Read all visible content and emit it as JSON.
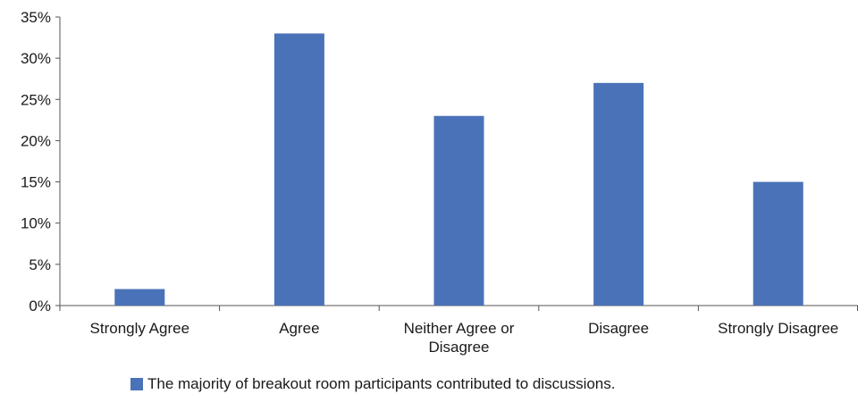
{
  "chart_data": {
    "type": "bar",
    "categories": [
      "Strongly Agree",
      "Agree",
      "Neither Agree or Disagree",
      "Disagree",
      "Strongly Disagree"
    ],
    "category_lines": [
      [
        "Strongly Agree"
      ],
      [
        "Agree"
      ],
      [
        "Neither Agree or",
        "Disagree"
      ],
      [
        "Disagree"
      ],
      [
        "Strongly Disagree"
      ]
    ],
    "series": [
      {
        "name": "The majority of breakout room participants contributed to discussions.",
        "values": [
          2,
          33,
          23,
          27,
          15
        ]
      }
    ],
    "y_unit": "%",
    "ylim": [
      0,
      35
    ],
    "yticks": [
      0,
      5,
      10,
      15,
      20,
      25,
      30,
      35
    ],
    "ytick_labels": [
      "0%",
      "5%",
      "10%",
      "15%",
      "20%",
      "25%",
      "30%",
      "35%"
    ],
    "title": "",
    "xlabel": "",
    "ylabel": "",
    "grid": false,
    "legend_position": "bottom",
    "bar_color": "#4a72b8",
    "axis_color": "#555555"
  }
}
